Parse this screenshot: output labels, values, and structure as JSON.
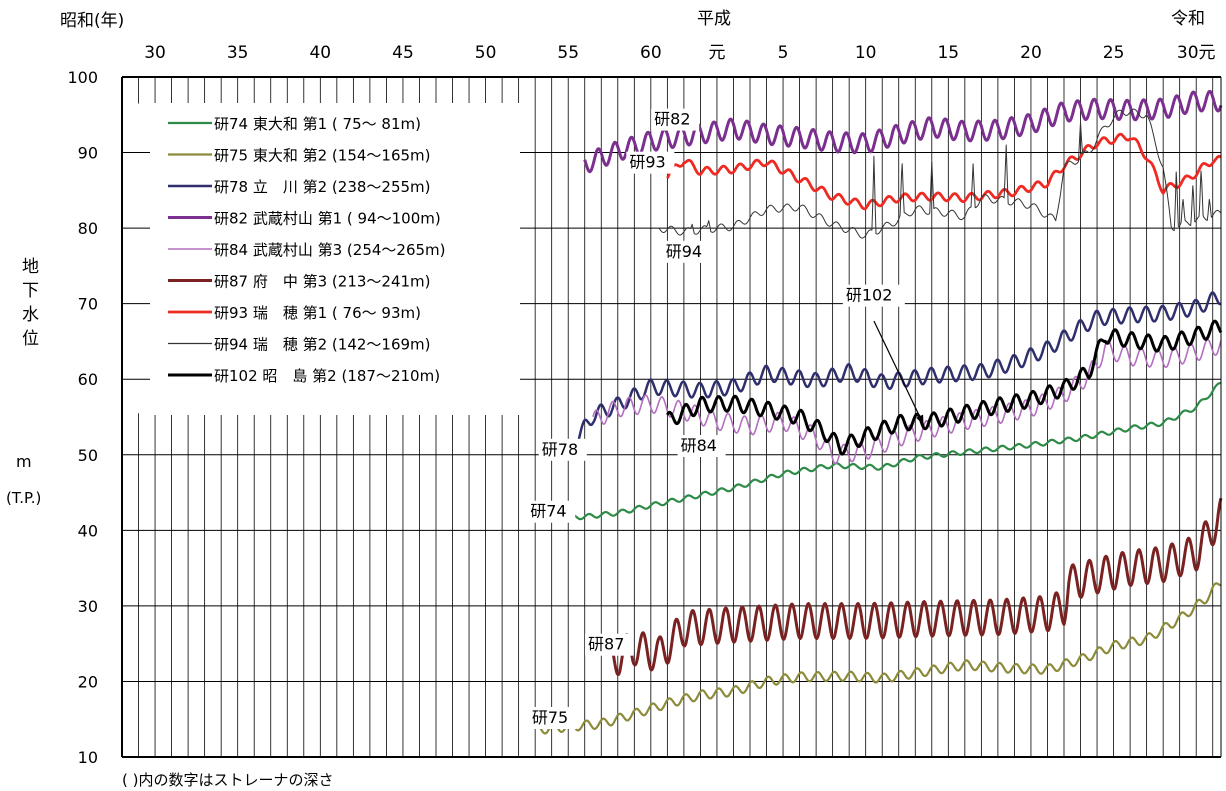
{
  "chart_data": {
    "type": "line",
    "era_labels": {
      "showa": "昭和(年)",
      "heisei": "平成",
      "reiwa": "令和"
    },
    "ylabel": "地下水位",
    "yunit": [
      "m",
      "(T.P.)"
    ],
    "footnote": "( )内の数字はストレーナの深さ",
    "ylim": [
      10,
      100
    ],
    "yticks": [
      10,
      20,
      30,
      40,
      50,
      60,
      70,
      80,
      90,
      100
    ],
    "xlim": [
      1953,
      2019.5
    ],
    "xticks": [
      {
        "year": 1955,
        "label": "30"
      },
      {
        "year": 1960,
        "label": "35"
      },
      {
        "year": 1965,
        "label": "40"
      },
      {
        "year": 1970,
        "label": "45"
      },
      {
        "year": 1975,
        "label": "50"
      },
      {
        "year": 1980,
        "label": "55"
      },
      {
        "year": 1985,
        "label": "60"
      },
      {
        "year": 1989,
        "label": "元"
      },
      {
        "year": 1993,
        "label": "5"
      },
      {
        "year": 1998,
        "label": "10"
      },
      {
        "year": 2003,
        "label": "15"
      },
      {
        "year": 2008,
        "label": "20"
      },
      {
        "year": 2013,
        "label": "25"
      },
      {
        "year": 2018,
        "label": "30元"
      }
    ],
    "series": [
      {
        "name": "研74 東大和 第1 ( 75～ 81m)",
        "label": "研74",
        "color": "#2e8b47",
        "width": 2.2,
        "amp": 0.3,
        "points": [
          [
            1978,
            41.6
          ],
          [
            1981,
            41.8
          ],
          [
            1983,
            42.3
          ],
          [
            1985,
            43.3
          ],
          [
            1987,
            44.2
          ],
          [
            1990,
            45.6
          ],
          [
            1993,
            47.5
          ],
          [
            1996,
            48.6
          ],
          [
            1999,
            48.3
          ],
          [
            2001,
            49.6
          ],
          [
            2005,
            50.6
          ],
          [
            2008,
            51.3
          ],
          [
            2011,
            52.2
          ],
          [
            2014,
            53.5
          ],
          [
            2016,
            54.2
          ],
          [
            2018,
            56.3
          ],
          [
            2019.5,
            59.5
          ]
        ]
      },
      {
        "name": "研75 東大和 第2 (154～165m)",
        "label": "研75",
        "color": "#8b8b3a",
        "width": 2.2,
        "amp": 0.6,
        "points": [
          [
            1978,
            13.6
          ],
          [
            1980,
            14.0
          ],
          [
            1982,
            14.4
          ],
          [
            1984,
            15.7
          ],
          [
            1986,
            17.1
          ],
          [
            1988,
            18.2
          ],
          [
            1990,
            18.7
          ],
          [
            1992,
            20.0
          ],
          [
            1994,
            20.6
          ],
          [
            1997,
            20.7
          ],
          [
            1999,
            20.4
          ],
          [
            2001,
            21.1
          ],
          [
            2004,
            22.2
          ],
          [
            2007,
            21.7
          ],
          [
            2009,
            21.6
          ],
          [
            2011,
            22.9
          ],
          [
            2013,
            24.7
          ],
          [
            2015,
            25.6
          ],
          [
            2017,
            28.3
          ],
          [
            2018.5,
            30.8
          ],
          [
            2019.5,
            33.2
          ]
        ]
      },
      {
        "name": "研78 立　川 第2 (238～255m)",
        "label": "研78",
        "color": "#2f2f6e",
        "width": 2.5,
        "amp": 1.0,
        "points": [
          [
            1980.5,
            52.0
          ],
          [
            1981.5,
            55.2
          ],
          [
            1983,
            56.6
          ],
          [
            1985,
            59.0
          ],
          [
            1988,
            58.5
          ],
          [
            1990,
            59.0
          ],
          [
            1992,
            60.8
          ],
          [
            1995,
            59.8
          ],
          [
            1997,
            61.0
          ],
          [
            1999,
            59.6
          ],
          [
            2002,
            60.5
          ],
          [
            2005,
            61.0
          ],
          [
            2007,
            62.2
          ],
          [
            2009,
            64.0
          ],
          [
            2010.5,
            66.2
          ],
          [
            2012,
            68.1
          ],
          [
            2014,
            68.5
          ],
          [
            2016,
            68.7
          ],
          [
            2018,
            69.5
          ],
          [
            2019.5,
            71.0
          ]
        ]
      },
      {
        "name": "研82 武蔵村山 第1 ( 94～100m)",
        "label": "研82",
        "color": "#7b2f8f",
        "width": 3.0,
        "amp": 1.3,
        "points": [
          [
            1981,
            88.5
          ],
          [
            1983,
            90.2
          ],
          [
            1985,
            91.5
          ],
          [
            1987,
            92.2
          ],
          [
            1989,
            92.8
          ],
          [
            1990,
            93.2
          ],
          [
            1992,
            92.4
          ],
          [
            1994,
            92.0
          ],
          [
            1996,
            91.4
          ],
          [
            1998,
            91.2
          ],
          [
            2000,
            92.4
          ],
          [
            2002,
            93.4
          ],
          [
            2004,
            92.8
          ],
          [
            2006,
            93.0
          ],
          [
            2008,
            93.8
          ],
          [
            2010,
            95.4
          ],
          [
            2012,
            95.8
          ],
          [
            2014,
            95.6
          ],
          [
            2016,
            95.8
          ],
          [
            2018,
            96.8
          ],
          [
            2019.5,
            96.8
          ]
        ]
      },
      {
        "name": "研84 武蔵村山 第3 (254～265m)",
        "label": "研84",
        "color": "#b36fc0",
        "width": 1.6,
        "amp": 1.2,
        "points": [
          [
            1981.5,
            54.5
          ],
          [
            1983,
            56.2
          ],
          [
            1985,
            56.8
          ],
          [
            1987,
            55.8
          ],
          [
            1989,
            54.5
          ],
          [
            1991,
            53.8
          ],
          [
            1993,
            54.5
          ],
          [
            1995,
            52.4
          ],
          [
            1996,
            50.0
          ],
          [
            1998,
            50.5
          ],
          [
            2000,
            52.3
          ],
          [
            2002,
            53.5
          ],
          [
            2004,
            54.5
          ],
          [
            2006,
            55.3
          ],
          [
            2008,
            56.2
          ],
          [
            2010,
            58.0
          ],
          [
            2011.5,
            60.5
          ],
          [
            2012.5,
            64.0
          ],
          [
            2014,
            63.0
          ],
          [
            2016,
            62.7
          ],
          [
            2018,
            63.6
          ],
          [
            2019.5,
            64.6
          ]
        ]
      },
      {
        "name": "研87 府　中 第3 (213～241m)",
        "label": "研87",
        "color": "#7a2222",
        "width": 3.0,
        "amp": 2.3,
        "points": [
          [
            1982.5,
            22.5
          ],
          [
            1984,
            24.5
          ],
          [
            1985.5,
            23.5
          ],
          [
            1987,
            27.0
          ],
          [
            1990,
            27.5
          ],
          [
            1994,
            28.0
          ],
          [
            1998,
            28.0
          ],
          [
            2002,
            28.3
          ],
          [
            2006,
            28.5
          ],
          [
            2009,
            29.0
          ],
          [
            2010,
            29.8
          ],
          [
            2010.3,
            33.0
          ],
          [
            2012,
            34.0
          ],
          [
            2014,
            35.0
          ],
          [
            2016,
            35.5
          ],
          [
            2018,
            37.0
          ],
          [
            2019.5,
            42.0
          ]
        ]
      },
      {
        "name": "研93 瑞　穂 第1 ( 76～ 93m)",
        "label": "研93",
        "color": "#ee2a22",
        "width": 2.8,
        "amp": 0.5,
        "points": [
          [
            1986,
            87.0
          ],
          [
            1987,
            89.0
          ],
          [
            1988,
            87.5
          ],
          [
            1990,
            87.8
          ],
          [
            1992,
            88.8
          ],
          [
            1994,
            86.5
          ],
          [
            1996,
            84.2
          ],
          [
            1998,
            83.0
          ],
          [
            2000,
            84.0
          ],
          [
            2002,
            84.2
          ],
          [
            2004,
            84.0
          ],
          [
            2007,
            84.8
          ],
          [
            2009,
            86.0
          ],
          [
            2010,
            88.3
          ],
          [
            2012,
            91.3
          ],
          [
            2014,
            92.2
          ],
          [
            2015,
            89.5
          ],
          [
            2016,
            85.0
          ],
          [
            2017.5,
            86.5
          ],
          [
            2019,
            89.0
          ],
          [
            2019.5,
            89.0
          ]
        ]
      },
      {
        "name": "研94 瑞　穂 第2 (142～169m)",
        "label": "研94",
        "color": "#333333",
        "width": 1.0,
        "amp": 0.5,
        "points": [
          [
            1985.5,
            80.0
          ],
          [
            1987,
            79.5
          ],
          [
            1989,
            80.0
          ],
          [
            1990,
            80.2
          ],
          [
            1992,
            82.5
          ],
          [
            1994,
            82.8
          ],
          [
            1996,
            80.5
          ],
          [
            1998,
            79.0
          ],
          [
            1999.5,
            80.5
          ],
          [
            2001,
            82.5
          ],
          [
            2003,
            82.0
          ],
          [
            2004,
            81.5
          ],
          [
            2005,
            84.0
          ],
          [
            2007,
            83.5
          ],
          [
            2008,
            83.0
          ],
          [
            2009.5,
            81.0
          ],
          [
            2010,
            88.0
          ],
          [
            2011.5,
            90.0
          ],
          [
            2012.5,
            93.5
          ],
          [
            2013.5,
            95.5
          ],
          [
            2015,
            95.0
          ],
          [
            2016,
            88.0
          ],
          [
            2016.5,
            80.0
          ],
          [
            2018,
            81.0
          ],
          [
            2019.5,
            82.0
          ]
        ],
        "spikes": [
          [
            1987.5,
            80.5
          ],
          [
            1988.5,
            81.0
          ],
          [
            1998.5,
            89.5
          ],
          [
            2000.2,
            89.0
          ],
          [
            2002,
            88.8
          ],
          [
            2004.5,
            88.5
          ],
          [
            2006.5,
            91.0
          ],
          [
            2011,
            94.0
          ],
          [
            2016.8,
            88.0
          ],
          [
            2017.2,
            84.0
          ],
          [
            2017.8,
            86.0
          ],
          [
            2018.3,
            88.0
          ],
          [
            2018.8,
            84.0
          ]
        ]
      },
      {
        "name": "研102 昭　島 第2 (187～210m)",
        "label": "研102",
        "color": "#000000",
        "width": 3.0,
        "amp": 1.0,
        "points": [
          [
            1986,
            54.5
          ],
          [
            1988,
            56.6
          ],
          [
            1990,
            56.8
          ],
          [
            1992,
            56.0
          ],
          [
            1994,
            55.0
          ],
          [
            1995.5,
            53.0
          ],
          [
            1996.5,
            51.0
          ],
          [
            1998,
            52.5
          ],
          [
            2000,
            54.2
          ],
          [
            2002,
            54.5
          ],
          [
            2004,
            55.5
          ],
          [
            2006,
            56.5
          ],
          [
            2008,
            57.3
          ],
          [
            2010,
            58.8
          ],
          [
            2011.5,
            61.0
          ],
          [
            2012.5,
            65.8
          ],
          [
            2014,
            65.2
          ],
          [
            2016,
            64.6
          ],
          [
            2018,
            65.8
          ],
          [
            2019.5,
            67.0
          ]
        ]
      }
    ],
    "annotations": [
      {
        "text": "研82",
        "x": 1985.2,
        "y": 93.7
      },
      {
        "text": "研93",
        "x": 1983.7,
        "y": 88.0
      },
      {
        "text": "研94",
        "x": 1985.9,
        "y": 76.2
      },
      {
        "text": "研102",
        "x": 1996.8,
        "y": 70.4
      },
      {
        "text": "研78",
        "x": 1978.4,
        "y": 50.0
      },
      {
        "text": "研84",
        "x": 1986.8,
        "y": 50.5
      },
      {
        "text": "研74",
        "x": 1977.7,
        "y": 41.8
      },
      {
        "text": "研87",
        "x": 1981.2,
        "y": 24.2
      },
      {
        "text": "研75",
        "x": 1977.8,
        "y": 14.5
      }
    ],
    "arrow": {
      "from": [
        1998.5,
        67.7
      ],
      "to": [
        2001.5,
        54.0
      ]
    },
    "legend_position": "top-left",
    "grid": true
  }
}
